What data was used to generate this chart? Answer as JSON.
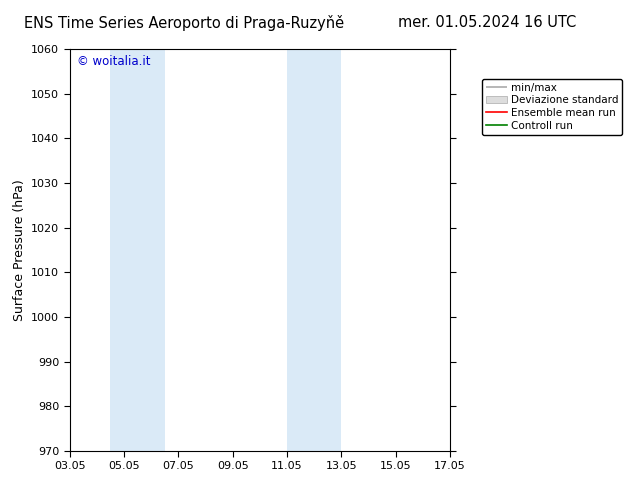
{
  "title_left": "ENS Time Series Aeroporto di Praga-Ruzyňě",
  "title_right": "mer. 01.05.2024 16 UTC",
  "ylabel": "Surface Pressure (hPa)",
  "ylim": [
    970,
    1060
  ],
  "yticks": [
    970,
    980,
    990,
    1000,
    1010,
    1020,
    1030,
    1040,
    1050,
    1060
  ],
  "xstart_num": 0,
  "xend_num": 14,
  "xtick_positions": [
    0,
    2,
    4,
    6,
    8,
    10,
    12,
    14
  ],
  "xtick_labels": [
    "03.05",
    "05.05",
    "07.05",
    "09.05",
    "11.05",
    "13.05",
    "15.05",
    "17.05"
  ],
  "shade_bands": [
    {
      "xmin": 1.5,
      "xmax": 3.5
    },
    {
      "xmin": 8.0,
      "xmax": 10.0
    }
  ],
  "shade_color": "#daeaf7",
  "legend_labels": [
    "min/max",
    "Deviazione standard",
    "Ensemble mean run",
    "Controll run"
  ],
  "minmax_color": "#aaaaaa",
  "devstd_color": "#cccccc",
  "ensemble_color": "#ff0000",
  "control_color": "#008000",
  "watermark": "© woitalia.it",
  "watermark_color": "#0000cc",
  "bg_color": "#ffffff",
  "title_fontsize": 10.5,
  "ylabel_fontsize": 9,
  "tick_fontsize": 8,
  "legend_fontsize": 7.5
}
